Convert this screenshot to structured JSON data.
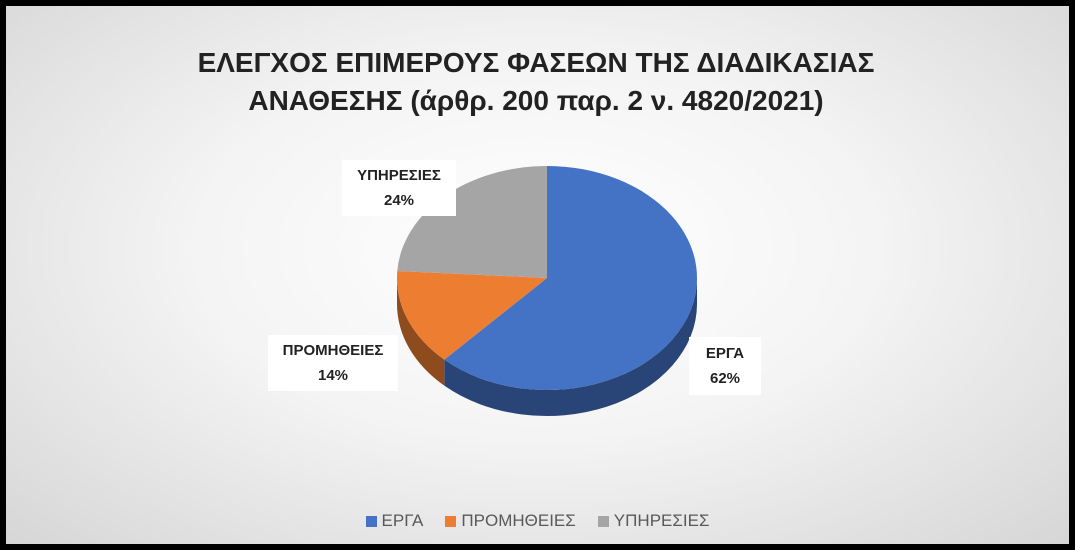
{
  "chart_data": {
    "type": "pie",
    "title": "ΕΛΕΓΧΟΣ ΕΠΙΜΕΡΟΥΣ ΦΑΣΕΩΝ ΤΗΣ ΔΙΑΔΙΚΑΣΙΑΣ ΑΝΑΘΕΣΗΣ (άρθρ. 200 παρ. 2  ν. 4820/2021)",
    "categories": [
      "ΕΡΓΑ",
      "ΠΡΟΜΗΘΕΙΕΣ",
      "ΥΠΗΡΕΣΙΕΣ"
    ],
    "values": [
      62,
      14,
      24
    ],
    "value_labels": [
      "62%",
      "14%",
      "24%"
    ],
    "colors": [
      "#4472c4",
      "#ed7d31",
      "#a5a5a5"
    ],
    "legend": "bottom"
  }
}
